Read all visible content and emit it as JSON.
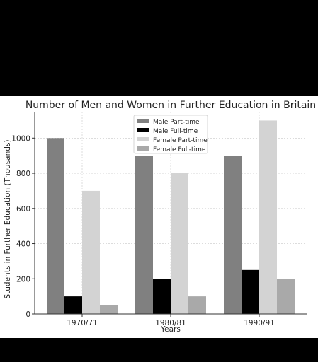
{
  "chart_data": {
    "type": "bar",
    "title": "Number of Men and Women in Further Education in Britain",
    "xlabel": "Years",
    "ylabel": "Students in Further Education (Thousands)",
    "categories": [
      "1970/71",
      "1980/81",
      "1990/91"
    ],
    "ylim": [
      0,
      1150
    ],
    "yticks": [
      0,
      200,
      400,
      600,
      800,
      1000
    ],
    "grid": true,
    "legend_position": "top-center",
    "series": [
      {
        "name": "Male Part-time",
        "color": "#808080",
        "values": [
          1000,
          900,
          900
        ]
      },
      {
        "name": "Male Full-time",
        "color": "#000000",
        "values": [
          100,
          200,
          250
        ]
      },
      {
        "name": "Female Part-time",
        "color": "#d3d3d3",
        "values": [
          700,
          800,
          1100
        ]
      },
      {
        "name": "Female Full-time",
        "color": "#a9a9a9",
        "values": [
          50,
          100,
          200
        ]
      }
    ]
  }
}
